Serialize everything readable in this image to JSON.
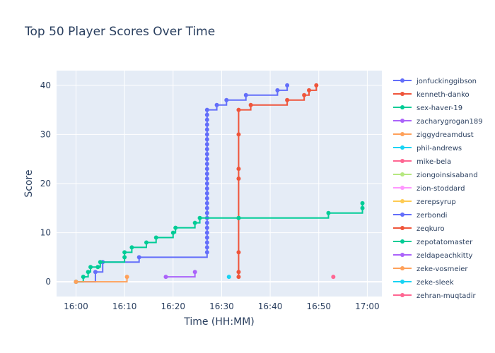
{
  "chart_data": {
    "type": "line",
    "line_shape": "step",
    "title": "Top 50 Player Scores Over Time",
    "xlabel": "Time (HH:MM)",
    "ylabel": "Score",
    "xlim": [
      "15:56",
      "17:03"
    ],
    "ylim": [
      -3,
      43
    ],
    "x_ticks": [
      "16:00",
      "16:10",
      "16:20",
      "16:30",
      "16:40",
      "16:50",
      "17:00"
    ],
    "y_ticks": [
      0,
      10,
      20,
      30,
      40
    ],
    "grid": true,
    "legend_position": "right",
    "series": [
      {
        "name": "jonfuckinggibson",
        "color": "#636efa",
        "points": [
          [
            "16:00",
            0
          ],
          [
            "16:04",
            2
          ],
          [
            "16:05.5",
            4
          ],
          [
            "16:13",
            5
          ],
          [
            "16:27",
            6
          ],
          [
            "16:27",
            7
          ],
          [
            "16:27",
            8
          ],
          [
            "16:27",
            9
          ],
          [
            "16:27",
            10
          ],
          [
            "16:27",
            11
          ],
          [
            "16:27",
            12
          ],
          [
            "16:27",
            13
          ],
          [
            "16:27",
            14
          ],
          [
            "16:27",
            15
          ],
          [
            "16:27",
            16
          ],
          [
            "16:27",
            17
          ],
          [
            "16:27",
            18
          ],
          [
            "16:27",
            19
          ],
          [
            "16:27",
            20
          ],
          [
            "16:27",
            21
          ],
          [
            "16:27",
            22
          ],
          [
            "16:27",
            23
          ],
          [
            "16:27",
            24
          ],
          [
            "16:27",
            25
          ],
          [
            "16:27",
            26
          ],
          [
            "16:27",
            27
          ],
          [
            "16:27",
            28
          ],
          [
            "16:27",
            29
          ],
          [
            "16:27",
            30
          ],
          [
            "16:27",
            31
          ],
          [
            "16:27",
            32
          ],
          [
            "16:27",
            33
          ],
          [
            "16:27",
            34
          ],
          [
            "16:27",
            35
          ],
          [
            "16:29",
            36
          ],
          [
            "16:31",
            37
          ],
          [
            "16:35",
            38
          ],
          [
            "16:41.5",
            39
          ],
          [
            "16:43.5",
            40
          ]
        ]
      },
      {
        "name": "kenneth-danko",
        "color": "#ef553b",
        "points": [
          [
            "16:33.5",
            1
          ],
          [
            "16:33.5",
            2
          ],
          [
            "16:33.5",
            6
          ],
          [
            "16:33.5",
            13
          ],
          [
            "16:33.5",
            21
          ],
          [
            "16:33.5",
            23
          ],
          [
            "16:33.5",
            30
          ],
          [
            "16:33.5",
            35
          ],
          [
            "16:36",
            36
          ],
          [
            "16:43.5",
            37
          ],
          [
            "16:47",
            38
          ],
          [
            "16:48",
            39
          ],
          [
            "16:49.5",
            40
          ]
        ]
      },
      {
        "name": "sex-haver-19",
        "color": "#00cc96",
        "points": [
          [
            "16:00",
            0
          ],
          [
            "16:01.5",
            1
          ],
          [
            "16:02.5",
            2
          ],
          [
            "16:03",
            3
          ],
          [
            "16:04.5",
            3
          ],
          [
            "16:05",
            4
          ],
          [
            "16:10",
            5
          ],
          [
            "16:10",
            6
          ],
          [
            "16:11.5",
            7
          ],
          [
            "16:14.5",
            8
          ],
          [
            "16:16.5",
            9
          ],
          [
            "16:20",
            10
          ],
          [
            "16:20.5",
            11
          ],
          [
            "16:24.5",
            12
          ],
          [
            "16:25.5",
            13
          ],
          [
            "16:33.5",
            13
          ],
          [
            "16:52",
            14
          ],
          [
            "16:59",
            15
          ],
          [
            "16:59",
            16
          ]
        ]
      },
      {
        "name": "zacharygrogan189",
        "color": "#ab63fa",
        "points": [
          [
            "16:18.5",
            1
          ],
          [
            "16:24.5",
            2
          ]
        ]
      },
      {
        "name": "ziggydreamdust",
        "color": "#ffa15a",
        "points": [
          [
            "16:00",
            0
          ],
          [
            "16:10.5",
            1
          ]
        ]
      },
      {
        "name": "phil-andrews",
        "color": "#19d3f3",
        "points": [
          [
            "16:31.5",
            1
          ]
        ]
      },
      {
        "name": "mike-bela",
        "color": "#ff6692",
        "points": [
          [
            "16:53",
            1
          ]
        ]
      },
      {
        "name": "ziongoinsisaband",
        "color": "#b6e880",
        "points": []
      },
      {
        "name": "zion-stoddard",
        "color": "#ff97ff",
        "points": []
      },
      {
        "name": "zerepsyrup",
        "color": "#fecb52",
        "points": []
      },
      {
        "name": "zerbondi",
        "color": "#636efa",
        "points": []
      },
      {
        "name": "zeqkuro",
        "color": "#ef553b",
        "points": []
      },
      {
        "name": "zepotatomaster",
        "color": "#00cc96",
        "points": []
      },
      {
        "name": "zeldapeachkitty",
        "color": "#ab63fa",
        "points": []
      },
      {
        "name": "zeke-vosmeier",
        "color": "#ffa15a",
        "points": []
      },
      {
        "name": "zeke-sleek",
        "color": "#19d3f3",
        "points": []
      },
      {
        "name": "zehran-muqtadir",
        "color": "#ff6692",
        "points": []
      }
    ]
  }
}
